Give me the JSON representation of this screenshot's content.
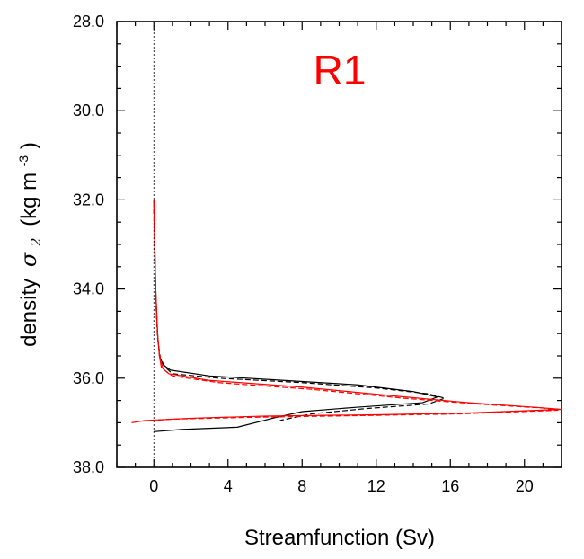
{
  "chart_data": {
    "type": "line",
    "panel_label": "R1",
    "panel_label_color": "#ff0000",
    "xlabel": "Streamfunction (Sv)",
    "ylabel_prefix": "density",
    "ylabel_symbol": "σ",
    "ylabel_subscript": "2",
    "ylabel_unit_open": "(kg m",
    "ylabel_unit_sup": "-3",
    "ylabel_unit_close": ")",
    "xlim": [
      -2,
      22
    ],
    "ylim": [
      38.0,
      28.0
    ],
    "y_inverted": true,
    "x_ticks": [
      0,
      4,
      8,
      12,
      16,
      20
    ],
    "x_tick_labels": [
      "0",
      "4",
      "8",
      "12",
      "16",
      "20"
    ],
    "y_ticks": [
      28,
      30,
      32,
      34,
      36,
      38
    ],
    "y_tick_labels": [
      "28.0",
      "30.0",
      "32.0",
      "34.0",
      "36.0",
      "38.0"
    ],
    "zero_line": 0,
    "grid": false,
    "series": [
      {
        "color": "#000000",
        "dash": "solid",
        "points": [
          [
            0.0,
            32.0
          ],
          [
            0.05,
            33.0
          ],
          [
            0.1,
            34.0
          ],
          [
            0.2,
            35.0
          ],
          [
            0.3,
            35.5
          ],
          [
            0.5,
            35.7
          ],
          [
            0.9,
            35.82
          ],
          [
            3.0,
            35.95
          ],
          [
            7.0,
            36.05
          ],
          [
            11.0,
            36.15
          ],
          [
            14.0,
            36.3
          ],
          [
            15.3,
            36.42
          ],
          [
            14.5,
            36.55
          ],
          [
            11.0,
            36.65
          ],
          [
            8.0,
            36.75
          ],
          [
            6.6,
            36.88
          ],
          [
            4.5,
            37.1
          ],
          [
            1.5,
            37.15
          ],
          [
            0.0,
            37.2
          ]
        ]
      },
      {
        "color": "#000000",
        "dash": "dashed",
        "points": [
          [
            0.0,
            32.2
          ],
          [
            0.05,
            33.2
          ],
          [
            0.1,
            34.2
          ],
          [
            0.2,
            35.1
          ],
          [
            0.35,
            35.55
          ],
          [
            0.6,
            35.75
          ],
          [
            1.0,
            35.9
          ],
          [
            3.5,
            36.0
          ],
          [
            8.0,
            36.1
          ],
          [
            12.0,
            36.22
          ],
          [
            14.8,
            36.35
          ],
          [
            15.7,
            36.45
          ],
          [
            14.8,
            36.58
          ],
          [
            11.5,
            36.68
          ],
          [
            8.5,
            36.8
          ],
          [
            6.8,
            36.95
          ]
        ]
      },
      {
        "color": "#ff0000",
        "dash": "solid",
        "points": [
          [
            0.0,
            32.0
          ],
          [
            0.05,
            33.0
          ],
          [
            0.1,
            34.0
          ],
          [
            0.2,
            35.0
          ],
          [
            0.3,
            35.5
          ],
          [
            0.4,
            35.75
          ],
          [
            0.8,
            35.9
          ],
          [
            3.0,
            36.05
          ],
          [
            8.0,
            36.2
          ],
          [
            13.0,
            36.4
          ],
          [
            17.0,
            36.55
          ],
          [
            20.5,
            36.65
          ],
          [
            22.0,
            36.7
          ],
          [
            17.0,
            36.78
          ],
          [
            12.0,
            36.82
          ],
          [
            6.0,
            36.85
          ],
          [
            2.0,
            36.9
          ],
          [
            -0.5,
            36.95
          ],
          [
            -1.2,
            37.0
          ]
        ]
      },
      {
        "color": "#ff0000",
        "dash": "dashed",
        "points": [
          [
            0.0,
            32.2
          ],
          [
            0.05,
            33.2
          ],
          [
            0.1,
            34.2
          ],
          [
            0.2,
            35.1
          ],
          [
            0.35,
            35.55
          ],
          [
            0.5,
            35.8
          ],
          [
            1.0,
            35.95
          ],
          [
            3.5,
            36.1
          ],
          [
            8.5,
            36.25
          ],
          [
            13.5,
            36.45
          ],
          [
            17.5,
            36.58
          ],
          [
            21.0,
            36.67
          ],
          [
            21.8,
            36.72
          ],
          [
            16.5,
            36.8
          ],
          [
            11.0,
            36.84
          ],
          [
            5.0,
            36.88
          ],
          [
            1.0,
            36.92
          ],
          [
            -0.8,
            36.97
          ]
        ]
      }
    ]
  }
}
